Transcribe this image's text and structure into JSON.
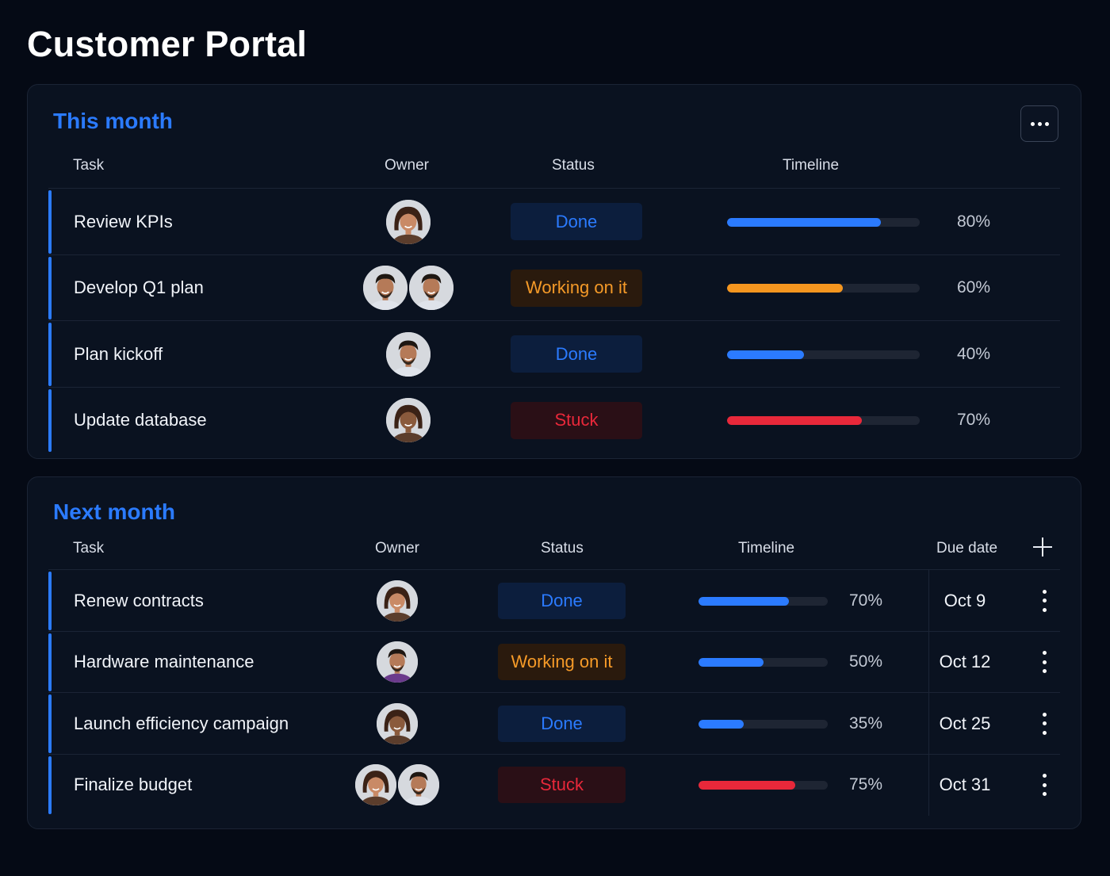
{
  "page": {
    "title": "Customer Portal"
  },
  "colors": {
    "accent": "#2b7bff",
    "done": "#2b7bff",
    "working": "#f5961f",
    "stuck": "#e8283a",
    "background": "#050a15"
  },
  "this_month": {
    "title": "This month",
    "more_icon": "more-horizontal-icon",
    "headers": {
      "task": "Task",
      "owner": "Owner",
      "status": "Status",
      "timeline": "Timeline"
    },
    "rows": [
      {
        "task": "Review KPIs",
        "owners": [
          "woman"
        ],
        "status": "Done",
        "status_type": "done",
        "progress": 80,
        "progress_label": "80%",
        "color": "blue"
      },
      {
        "task": "Develop Q1 plan",
        "owners": [
          "man",
          "man"
        ],
        "status": "Working on it",
        "status_type": "working",
        "progress": 60,
        "progress_label": "60%",
        "color": "orange"
      },
      {
        "task": "Plan kickoff",
        "owners": [
          "man"
        ],
        "status": "Done",
        "status_type": "done",
        "progress": 40,
        "progress_label": "40%",
        "color": "blue"
      },
      {
        "task": "Update database",
        "owners": [
          "woman-dark"
        ],
        "status": "Stuck",
        "status_type": "stuck",
        "progress": 70,
        "progress_label": "70%",
        "color": "red"
      }
    ]
  },
  "next_month": {
    "title": "Next month",
    "add_icon": "plus-icon",
    "headers": {
      "task": "Task",
      "owner": "Owner",
      "status": "Status",
      "timeline": "Timeline",
      "due": "Due date"
    },
    "rows": [
      {
        "task": "Renew contracts",
        "owners": [
          "woman"
        ],
        "status": "Done",
        "status_type": "done",
        "progress": 70,
        "progress_label": "70%",
        "color": "blue",
        "due": "Oct 9"
      },
      {
        "task": "Hardware maintenance",
        "owners": [
          "man-purple"
        ],
        "status": "Working on it",
        "status_type": "working",
        "progress": 50,
        "progress_label": "50%",
        "color": "blue",
        "due": "Oct 12"
      },
      {
        "task": "Launch efficiency campaign",
        "owners": [
          "woman-dark"
        ],
        "status": "Done",
        "status_type": "done",
        "progress": 35,
        "progress_label": "35%",
        "color": "blue",
        "due": "Oct 25"
      },
      {
        "task": "Finalize budget",
        "owners": [
          "woman",
          "man"
        ],
        "status": "Stuck",
        "status_type": "stuck",
        "progress": 75,
        "progress_label": "75%",
        "color": "red",
        "due": "Oct 31"
      }
    ]
  }
}
